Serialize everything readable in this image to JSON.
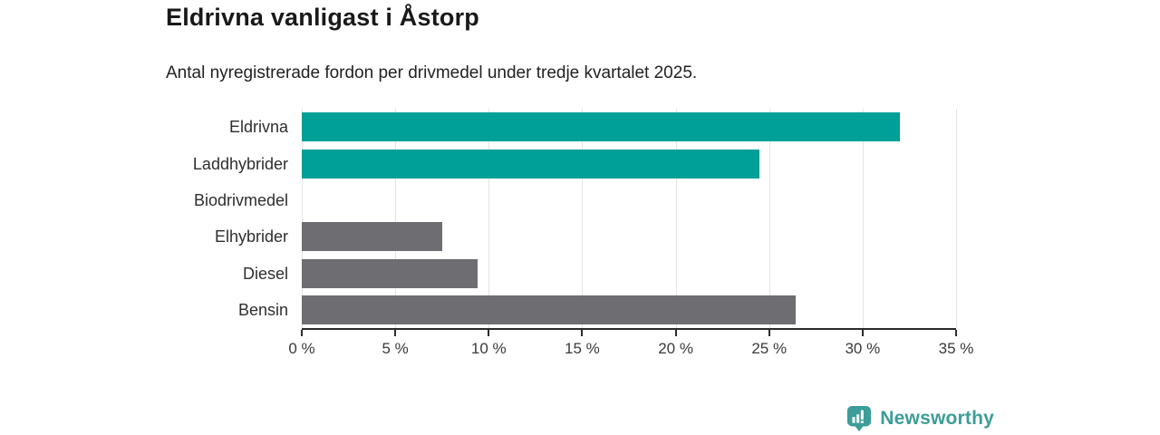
{
  "header": {
    "title": "Eldrivna vanligast i Åstorp",
    "subtitle": "Antal nyregistrerade fordon per drivmedel under tredje kvartalet 2025."
  },
  "chart_data": {
    "type": "bar",
    "orientation": "horizontal",
    "title": "Eldrivna vanligast i Åstorp",
    "subtitle": "Antal nyregistrerade fordon per drivmedel under tredje kvartalet 2025.",
    "categories": [
      "Eldrivna",
      "Laddhybrider",
      "Biodrivmedel",
      "Elhybrider",
      "Diesel",
      "Bensin"
    ],
    "values": [
      32.0,
      24.5,
      0,
      7.5,
      9.4,
      26.4
    ],
    "unit": "%",
    "xlim": [
      0,
      35
    ],
    "x_ticks": [
      0,
      5,
      10,
      15,
      20,
      25,
      30,
      35
    ],
    "x_tick_labels": [
      "0 %",
      "5 %",
      "10 %",
      "15 %",
      "20 %",
      "25 %",
      "30 %",
      "35 %"
    ],
    "grid": true,
    "legend": false,
    "bar_colors": [
      "#00a098",
      "#00a098",
      "#6d6d72",
      "#6d6d72",
      "#6d6d72",
      "#6d6d72"
    ],
    "highlight_color": "#00a098",
    "default_color": "#6d6d72",
    "gridline_color": "#e3e3e3",
    "axis_color": "#2b2b2b"
  },
  "footer": {
    "brand_name": "Newsworthy",
    "brand_color": "#3c9d99",
    "logo_icon": "newsworthy-bar-chart-pin-icon"
  }
}
